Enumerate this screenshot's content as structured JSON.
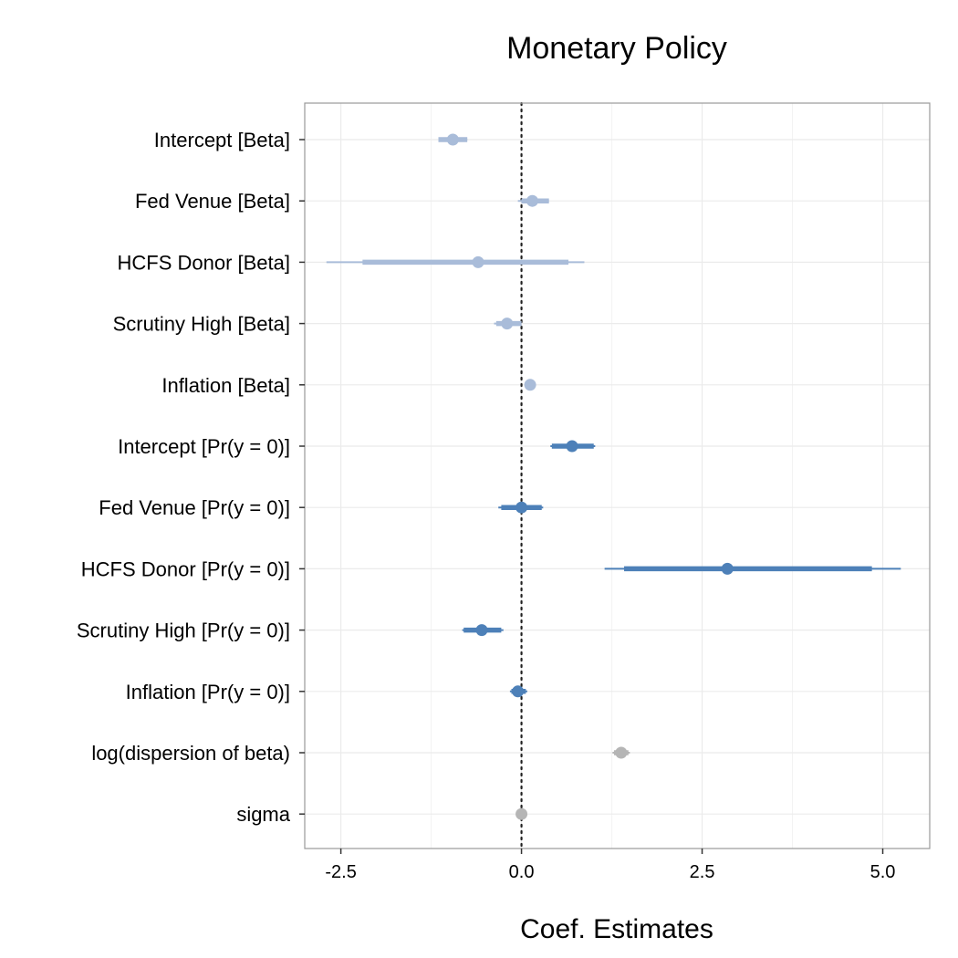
{
  "chart_data": {
    "type": "scatter",
    "title": "Monetary Policy",
    "xlabel": "Coef. Estimates",
    "ylabel": "",
    "xlim": [
      -3.0,
      5.65
    ],
    "x_ticks": [
      -2.5,
      0.0,
      2.5,
      5.0
    ],
    "x_tick_labels": [
      "-2.5",
      "0.0",
      "2.5",
      "5.0"
    ],
    "reference_line": 0,
    "grid": true,
    "colors": {
      "beta": "#a9bcd9",
      "pr": "#4d80b8",
      "other": "#b5b5b5",
      "panel_border": "#999999",
      "grid": "#ebebeb"
    },
    "rows": [
      {
        "label": "Intercept [Beta]",
        "estimate": -0.95,
        "inner": [
          -1.15,
          -0.75
        ],
        "outer": [
          -1.15,
          -0.75
        ],
        "group": "beta"
      },
      {
        "label": "Fed Venue [Beta]",
        "estimate": 0.15,
        "inner": [
          0.0,
          0.38
        ],
        "outer": [
          -0.05,
          0.38
        ],
        "group": "beta"
      },
      {
        "label": "HCFS Donor [Beta]",
        "estimate": -0.6,
        "inner": [
          -2.2,
          0.65
        ],
        "outer": [
          -2.7,
          0.87
        ],
        "group": "beta"
      },
      {
        "label": "Scrutiny High [Beta]",
        "estimate": -0.2,
        "inner": [
          -0.35,
          0.0
        ],
        "outer": [
          -0.38,
          0.0
        ],
        "group": "beta"
      },
      {
        "label": "Inflation [Beta]",
        "estimate": 0.12,
        "inner": [
          0.08,
          0.16
        ],
        "outer": [
          0.06,
          0.18
        ],
        "group": "beta"
      },
      {
        "label": "Intercept [Pr(y = 0)]",
        "estimate": 0.7,
        "inner": [
          0.42,
          1.0
        ],
        "outer": [
          0.4,
          1.02
        ],
        "group": "pr"
      },
      {
        "label": "Fed Venue [Pr(y = 0)]",
        "estimate": 0.0,
        "inner": [
          -0.28,
          0.28
        ],
        "outer": [
          -0.32,
          0.3
        ],
        "group": "pr"
      },
      {
        "label": "HCFS Donor [Pr(y = 0)]",
        "estimate": 2.85,
        "inner": [
          1.42,
          4.85
        ],
        "outer": [
          1.15,
          5.25
        ],
        "group": "pr"
      },
      {
        "label": "Scrutiny High [Pr(y = 0)]",
        "estimate": -0.55,
        "inner": [
          -0.8,
          -0.28
        ],
        "outer": [
          -0.82,
          -0.25
        ],
        "group": "pr"
      },
      {
        "label": "Inflation [Pr(y = 0)]",
        "estimate": -0.05,
        "inner": [
          -0.14,
          0.06
        ],
        "outer": [
          -0.16,
          0.08
        ],
        "group": "pr"
      },
      {
        "label": "log(dispersion of beta)",
        "estimate": 1.38,
        "inner": [
          1.28,
          1.48
        ],
        "outer": [
          1.26,
          1.5
        ],
        "group": "other"
      },
      {
        "label": "sigma",
        "estimate": 0.0,
        "inner": [
          -0.03,
          0.03
        ],
        "outer": [
          -0.04,
          0.04
        ],
        "group": "other"
      }
    ]
  }
}
